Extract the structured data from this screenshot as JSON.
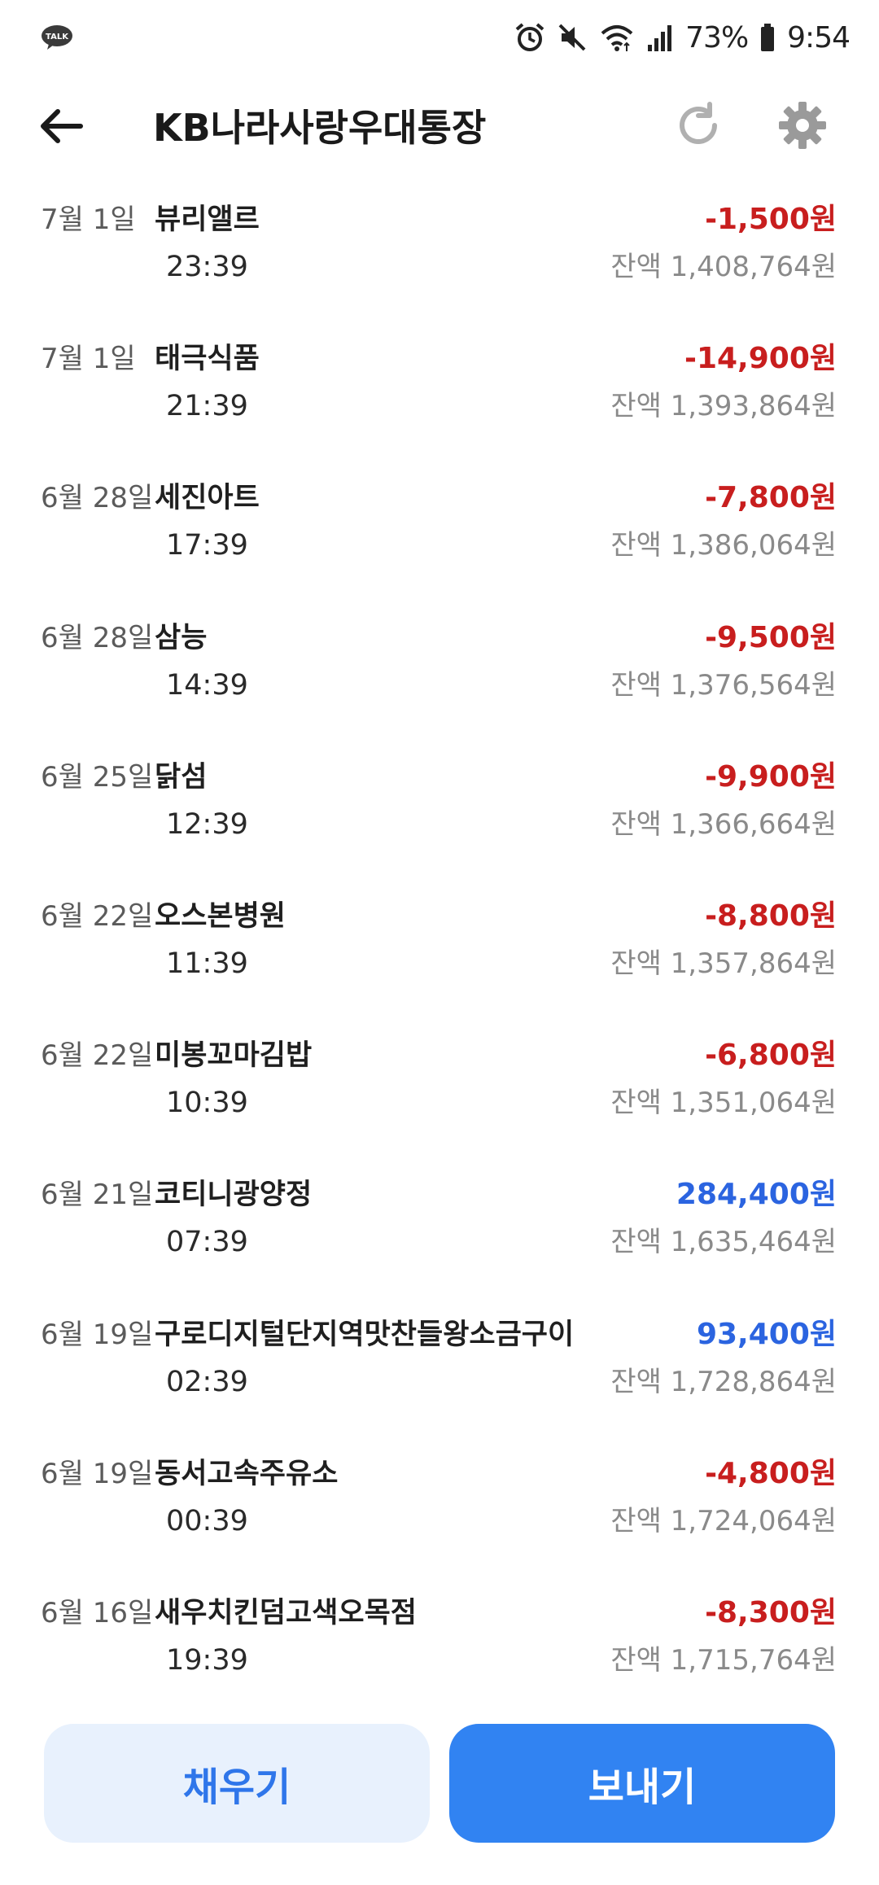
{
  "status_bar": {
    "battery_text": "73%",
    "time": "9:54",
    "icons": [
      "talk-icon",
      "alarm-icon",
      "mute-icon",
      "wifi-icon",
      "signal-icon",
      "battery-icon"
    ]
  },
  "header": {
    "title": "KB나라사랑우대통장",
    "icons": [
      "back-arrow-icon",
      "refresh-icon",
      "gear-icon"
    ]
  },
  "colors": {
    "negative": "#c81e1e",
    "positive": "#2b64e0",
    "fill_button_bg": "#e8f1fd",
    "send_button_bg": "#3183f2"
  },
  "transactions": [
    {
      "date": "7월 1일",
      "name": "뷰리앨르",
      "time": "23:39",
      "amount": "-1,500원",
      "balance": "잔액 1,408,764원",
      "type": "neg"
    },
    {
      "date": "7월 1일",
      "name": "태극식품",
      "time": "21:39",
      "amount": "-14,900원",
      "balance": "잔액 1,393,864원",
      "type": "neg"
    },
    {
      "date": "6월 28일",
      "name": "세진아트",
      "time": "17:39",
      "amount": "-7,800원",
      "balance": "잔액 1,386,064원",
      "type": "neg"
    },
    {
      "date": "6월 28일",
      "name": "삼능",
      "time": "14:39",
      "amount": "-9,500원",
      "balance": "잔액 1,376,564원",
      "type": "neg"
    },
    {
      "date": "6월 25일",
      "name": "닭섬",
      "time": "12:39",
      "amount": "-9,900원",
      "balance": "잔액 1,366,664원",
      "type": "neg"
    },
    {
      "date": "6월 22일",
      "name": "오스본병원",
      "time": "11:39",
      "amount": "-8,800원",
      "balance": "잔액 1,357,864원",
      "type": "neg"
    },
    {
      "date": "6월 22일",
      "name": "미봉꼬마김밥",
      "time": "10:39",
      "amount": "-6,800원",
      "balance": "잔액 1,351,064원",
      "type": "neg"
    },
    {
      "date": "6월 21일",
      "name": "코티니광양정",
      "time": "07:39",
      "amount": "284,400원",
      "balance": "잔액 1,635,464원",
      "type": "pos"
    },
    {
      "date": "6월 19일",
      "name": "구로디지털단지역맛찬들왕소금구이",
      "time": "02:39",
      "amount": "93,400원",
      "balance": "잔액 1,728,864원",
      "type": "pos"
    },
    {
      "date": "6월 19일",
      "name": "동서고속주유소",
      "time": "00:39",
      "amount": "-4,800원",
      "balance": "잔액 1,724,064원",
      "type": "neg"
    },
    {
      "date": "6월 16일",
      "name": "새우치킨덤고색오목점",
      "time": "19:39",
      "amount": "-8,300원",
      "balance": "잔액 1,715,764원",
      "type": "neg"
    }
  ],
  "buttons": {
    "fill_label": "채우기",
    "send_label": "보내기"
  }
}
